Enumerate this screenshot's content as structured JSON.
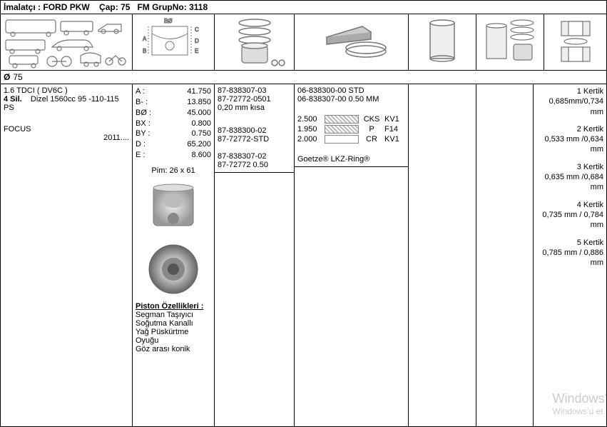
{
  "header": {
    "manufacturer_label": "İmalatçı :",
    "manufacturer": "FORD PKW",
    "diameter_label": "Çap:",
    "diameter": "75",
    "group_label": "FM GrupNo:",
    "group": "3118"
  },
  "diameter_row": {
    "symbol": "Ø",
    "value": "75"
  },
  "engine": {
    "code": "1.6 TDCI ( DV6C )",
    "cyl_label": "4 Sil.",
    "spec": "Dizel 1560cc 95 -110-115 PS",
    "model": "FOCUS",
    "year": "2011...."
  },
  "dimensions": {
    "A": "41.750",
    "B_minus": "13.850",
    "B_diam_label": "BØ :",
    "B_diam": "45.000",
    "BX": "0.800",
    "BY": "0.750",
    "D": "65.200",
    "E": "8.600",
    "pin_label": "Pim:",
    "pin": "26 x 61"
  },
  "piston_features": {
    "title": "Piston Özellikleri :",
    "lines": [
      "Segman Taşıyıcı",
      "Soğutma Kanallı",
      "Yağ Püskürtme Oyuğu",
      "Göz arası konik"
    ]
  },
  "parts_a": [
    "87-838307-03",
    "87-72772-0501",
    "0,20 mm kısa"
  ],
  "parts_b": [
    "87-838300-02",
    "87-72772-STD"
  ],
  "parts_c": [
    "87-838307-02",
    "87-72772 0.50"
  ],
  "ring_set": {
    "codes": [
      "06-838300-00 STD",
      "06-838307-00 0.50 MM"
    ],
    "rows": [
      {
        "h": "2.500",
        "style": "hatch",
        "t1": "CKS",
        "t2": "KV1"
      },
      {
        "h": "1.950",
        "style": "hatch",
        "t1": "P",
        "t2": "F14"
      },
      {
        "h": "2.000",
        "style": "plain",
        "t1": "CR",
        "t2": "KV1"
      }
    ],
    "brand": "Goetze® LKZ-Ring®"
  },
  "kertik": [
    {
      "n": "1 Kertik",
      "v": "0,685mm/0,734 mm"
    },
    {
      "n": "2 Kertik",
      "v": "0,533 mm /0,634 mm"
    },
    {
      "n": "3 Kertik",
      "v": "0,635 mm /0,684 mm"
    },
    {
      "n": "4 Kertik",
      "v": "0,735 mm / 0,784 mm"
    },
    {
      "n": "5 Kertik",
      "v": "0,785 mm / 0,886 mm"
    }
  ],
  "watermark": {
    "l1": "Windows'",
    "l2": "Windows'u et"
  },
  "colors": {
    "border": "#000000",
    "muted": "#888888",
    "watermark": "#cccccc"
  }
}
